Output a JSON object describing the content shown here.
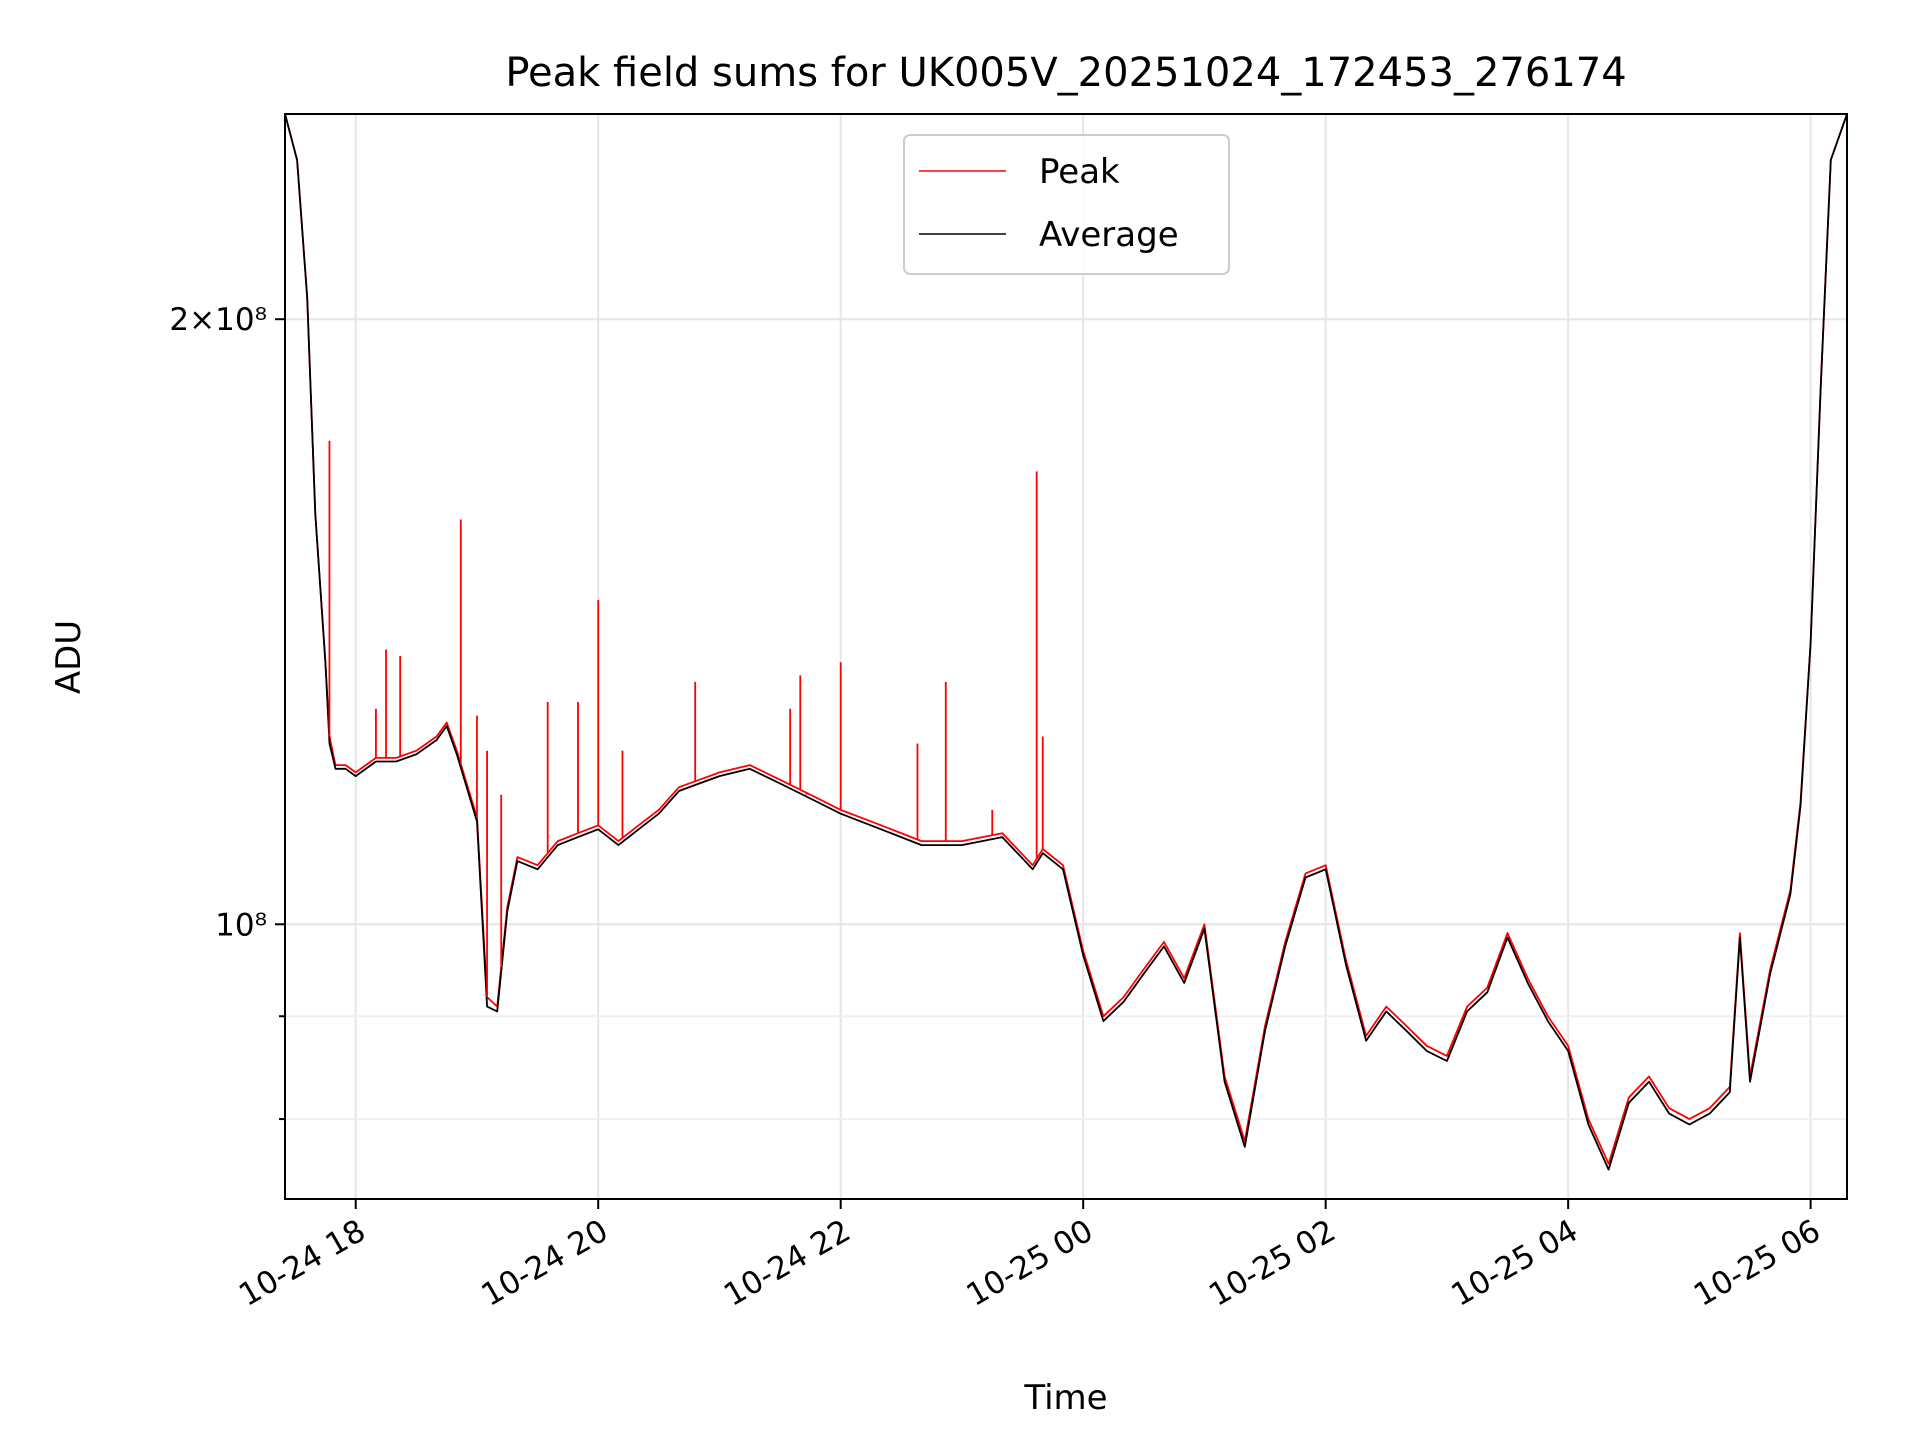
{
  "chart_data": {
    "type": "line",
    "title": "Peak field sums for UK005V_20251024_172453_276174",
    "xlabel": "Time",
    "ylabel": "ADU",
    "y_scale": "log",
    "grid": true,
    "legend_position": "upper center",
    "xlim": [
      "2025-10-24 17:25",
      "2025-10-25 06:18"
    ],
    "ylim": [
      73000000,
      253000000
    ],
    "x_ticks": [
      {
        "value": "2025-10-24 18:00",
        "label": "10-24 18"
      },
      {
        "value": "2025-10-24 20:00",
        "label": "10-24 20"
      },
      {
        "value": "2025-10-24 22:00",
        "label": "10-24 22"
      },
      {
        "value": "2025-10-25 00:00",
        "label": "10-25 00"
      },
      {
        "value": "2025-10-25 02:00",
        "label": "10-25 02"
      },
      {
        "value": "2025-10-25 04:00",
        "label": "10-25 04"
      },
      {
        "value": "2025-10-25 06:00",
        "label": "10-25 06"
      }
    ],
    "y_ticks": [
      {
        "value": 200000000,
        "label": "2×10⁸",
        "major": true
      },
      {
        "value": 100000000,
        "label": "10⁸",
        "major": true
      },
      {
        "value": 90000000,
        "label": "",
        "major": false
      },
      {
        "value": 80000000,
        "label": "",
        "major": false
      }
    ],
    "series": [
      {
        "name": "Peak",
        "color": "#ff0000",
        "x": [
          "2025-10-24 17:25",
          "2025-10-24 17:31",
          "2025-10-24 17:36",
          "2025-10-24 17:40",
          "2025-10-24 17:45",
          "2025-10-24 17:47",
          "2025-10-24 17:50",
          "2025-10-24 17:55",
          "2025-10-24 18:00",
          "2025-10-24 18:10",
          "2025-10-24 18:20",
          "2025-10-24 18:30",
          "2025-10-24 18:40",
          "2025-10-24 18:45",
          "2025-10-24 18:50",
          "2025-10-24 19:00",
          "2025-10-24 19:05",
          "2025-10-24 19:10",
          "2025-10-24 19:15",
          "2025-10-24 19:20",
          "2025-10-24 19:30",
          "2025-10-24 19:40",
          "2025-10-24 19:50",
          "2025-10-24 20:00",
          "2025-10-24 20:10",
          "2025-10-24 20:20",
          "2025-10-24 20:30",
          "2025-10-24 20:40",
          "2025-10-24 20:50",
          "2025-10-24 21:00",
          "2025-10-24 21:15",
          "2025-10-24 21:30",
          "2025-10-24 21:45",
          "2025-10-24 22:00",
          "2025-10-24 22:20",
          "2025-10-24 22:40",
          "2025-10-24 23:00",
          "2025-10-24 23:20",
          "2025-10-24 23:35",
          "2025-10-24 23:40",
          "2025-10-24 23:50",
          "2025-10-25 00:00",
          "2025-10-25 00:10",
          "2025-10-25 00:20",
          "2025-10-25 00:30",
          "2025-10-25 00:40",
          "2025-10-25 00:50",
          "2025-10-25 01:00",
          "2025-10-25 01:10",
          "2025-10-25 01:20",
          "2025-10-25 01:30",
          "2025-10-25 01:40",
          "2025-10-25 01:50",
          "2025-10-25 02:00",
          "2025-10-25 02:10",
          "2025-10-25 02:20",
          "2025-10-25 02:30",
          "2025-10-25 02:40",
          "2025-10-25 02:50",
          "2025-10-25 03:00",
          "2025-10-25 03:10",
          "2025-10-25 03:20",
          "2025-10-25 03:30",
          "2025-10-25 03:40",
          "2025-10-25 03:50",
          "2025-10-25 04:00",
          "2025-10-25 04:10",
          "2025-10-25 04:20",
          "2025-10-25 04:30",
          "2025-10-25 04:40",
          "2025-10-25 04:50",
          "2025-10-25 05:00",
          "2025-10-25 05:10",
          "2025-10-25 05:20",
          "2025-10-25 05:25",
          "2025-10-25 05:30",
          "2025-10-25 05:40",
          "2025-10-25 05:50",
          "2025-10-25 05:55",
          "2025-10-25 06:00",
          "2025-10-25 06:05",
          "2025-10-25 06:10",
          "2025-10-25 06:18"
        ],
        "values": [
          253000000,
          240000000,
          205000000,
          160000000,
          135000000,
          124000000,
          120000000,
          120000000,
          119000000,
          121000000,
          121000000,
          122000000,
          124000000,
          126000000,
          122000000,
          113000000,
          92000000,
          91000000,
          102000000,
          108000000,
          107000000,
          110000000,
          111000000,
          112000000,
          110000000,
          112000000,
          114000000,
          117000000,
          118000000,
          119000000,
          120000000,
          118000000,
          116000000,
          114000000,
          112000000,
          110000000,
          110000000,
          111000000,
          107000000,
          109000000,
          107000000,
          97000000,
          90000000,
          92000000,
          95000000,
          98000000,
          94000000,
          100000000,
          84000000,
          78000000,
          89000000,
          98000000,
          106000000,
          107000000,
          96000000,
          88000000,
          91000000,
          89000000,
          87000000,
          86000000,
          91000000,
          93000000,
          99000000,
          94000000,
          90000000,
          87000000,
          80000000,
          76000000,
          82000000,
          84000000,
          81000000,
          80000000,
          81000000,
          83000000,
          99000000,
          84000000,
          95000000,
          104000000,
          115000000,
          138000000,
          185000000,
          240000000,
          253000000
        ]
      },
      {
        "name": "Average",
        "color": "#000000",
        "x": [
          "2025-10-24 17:25",
          "2025-10-24 17:31",
          "2025-10-24 17:36",
          "2025-10-24 17:40",
          "2025-10-24 17:45",
          "2025-10-24 17:47",
          "2025-10-24 17:50",
          "2025-10-24 17:55",
          "2025-10-24 18:00",
          "2025-10-24 18:10",
          "2025-10-24 18:20",
          "2025-10-24 18:30",
          "2025-10-24 18:40",
          "2025-10-24 18:45",
          "2025-10-24 18:50",
          "2025-10-24 19:00",
          "2025-10-24 19:05",
          "2025-10-24 19:10",
          "2025-10-24 19:15",
          "2025-10-24 19:20",
          "2025-10-24 19:30",
          "2025-10-24 19:40",
          "2025-10-24 19:50",
          "2025-10-24 20:00",
          "2025-10-24 20:10",
          "2025-10-24 20:20",
          "2025-10-24 20:30",
          "2025-10-24 20:40",
          "2025-10-24 20:50",
          "2025-10-24 21:00",
          "2025-10-24 21:15",
          "2025-10-24 21:30",
          "2025-10-24 21:45",
          "2025-10-24 22:00",
          "2025-10-24 22:20",
          "2025-10-24 22:40",
          "2025-10-24 23:00",
          "2025-10-24 23:20",
          "2025-10-24 23:35",
          "2025-10-24 23:40",
          "2025-10-24 23:50",
          "2025-10-25 00:00",
          "2025-10-25 00:10",
          "2025-10-25 00:20",
          "2025-10-25 00:30",
          "2025-10-25 00:40",
          "2025-10-25 00:50",
          "2025-10-25 01:00",
          "2025-10-25 01:10",
          "2025-10-25 01:20",
          "2025-10-25 01:30",
          "2025-10-25 01:40",
          "2025-10-25 01:50",
          "2025-10-25 02:00",
          "2025-10-25 02:10",
          "2025-10-25 02:20",
          "2025-10-25 02:30",
          "2025-10-25 02:40",
          "2025-10-25 02:50",
          "2025-10-25 03:00",
          "2025-10-25 03:10",
          "2025-10-25 03:20",
          "2025-10-25 03:30",
          "2025-10-25 03:40",
          "2025-10-25 03:50",
          "2025-10-25 04:00",
          "2025-10-25 04:10",
          "2025-10-25 04:20",
          "2025-10-25 04:30",
          "2025-10-25 04:40",
          "2025-10-25 04:50",
          "2025-10-25 05:00",
          "2025-10-25 05:10",
          "2025-10-25 05:20",
          "2025-10-25 05:25",
          "2025-10-25 05:30",
          "2025-10-25 05:40",
          "2025-10-25 05:50",
          "2025-10-25 05:55",
          "2025-10-25 06:00",
          "2025-10-25 06:05",
          "2025-10-25 06:10",
          "2025-10-25 06:18"
        ],
        "values": [
          253000000,
          240000000,
          205000000,
          160000000,
          135000000,
          123000000,
          119500000,
          119500000,
          118500000,
          120500000,
          120500000,
          121500000,
          123500000,
          125500000,
          121500000,
          112500000,
          91000000,
          90500000,
          101500000,
          107500000,
          106500000,
          109500000,
          110500000,
          111500000,
          109500000,
          111500000,
          113500000,
          116500000,
          117500000,
          118500000,
          119500000,
          117500000,
          115500000,
          113500000,
          111500000,
          109500000,
          109500000,
          110500000,
          106500000,
          108500000,
          106500000,
          96500000,
          89500000,
          91500000,
          94500000,
          97500000,
          93500000,
          99500000,
          83500000,
          77500000,
          88500000,
          97500000,
          105500000,
          106500000,
          95500000,
          87500000,
          90500000,
          88500000,
          86500000,
          85500000,
          90500000,
          92500000,
          98500000,
          93500000,
          89500000,
          86500000,
          79500000,
          75500000,
          81500000,
          83500000,
          80500000,
          79500000,
          80500000,
          82500000,
          98500000,
          83500000,
          94500000,
          103500000,
          114500000,
          138000000,
          185000000,
          240000000,
          253000000
        ]
      }
    ],
    "spikes": [
      {
        "series": "Peak",
        "x": "2025-10-24 17:47",
        "value": 174000000
      },
      {
        "series": "Peak",
        "x": "2025-10-24 18:10",
        "value": 128000000
      },
      {
        "series": "Peak",
        "x": "2025-10-24 18:15",
        "value": 137000000
      },
      {
        "series": "Peak",
        "x": "2025-10-24 18:22",
        "value": 136000000
      },
      {
        "series": "Peak",
        "x": "2025-10-24 18:52",
        "value": 159000000
      },
      {
        "series": "Peak",
        "x": "2025-10-24 19:00",
        "value": 127000000
      },
      {
        "series": "Peak",
        "x": "2025-10-24 19:05",
        "value": 122000000
      },
      {
        "series": "Peak",
        "x": "2025-10-24 19:12",
        "value": 116000000
      },
      {
        "series": "Peak",
        "x": "2025-10-24 19:35",
        "value": 129000000
      },
      {
        "series": "Peak",
        "x": "2025-10-24 19:50",
        "value": 129000000
      },
      {
        "series": "Peak",
        "x": "2025-10-24 20:00",
        "value": 145000000
      },
      {
        "series": "Peak",
        "x": "2025-10-24 20:12",
        "value": 122000000
      },
      {
        "series": "Peak",
        "x": "2025-10-24 20:48",
        "value": 132000000
      },
      {
        "series": "Peak",
        "x": "2025-10-24 21:35",
        "value": 128000000
      },
      {
        "series": "Peak",
        "x": "2025-10-24 21:40",
        "value": 133000000
      },
      {
        "series": "Peak",
        "x": "2025-10-24 21:43",
        "value": 116000000
      },
      {
        "series": "Peak",
        "x": "2025-10-24 22:00",
        "value": 135000000
      },
      {
        "series": "Peak",
        "x": "2025-10-24 22:38",
        "value": 123000000
      },
      {
        "series": "Peak",
        "x": "2025-10-24 22:52",
        "value": 132000000
      },
      {
        "series": "Peak",
        "x": "2025-10-24 23:15",
        "value": 114000000
      },
      {
        "series": "Peak",
        "x": "2025-10-24 23:37",
        "value": 168000000
      },
      {
        "series": "Peak",
        "x": "2025-10-24 23:40",
        "value": 124000000
      }
    ]
  },
  "legend": {
    "items": [
      {
        "label": "Peak",
        "color": "#ff0000"
      },
      {
        "label": "Average",
        "color": "#000000"
      }
    ]
  }
}
